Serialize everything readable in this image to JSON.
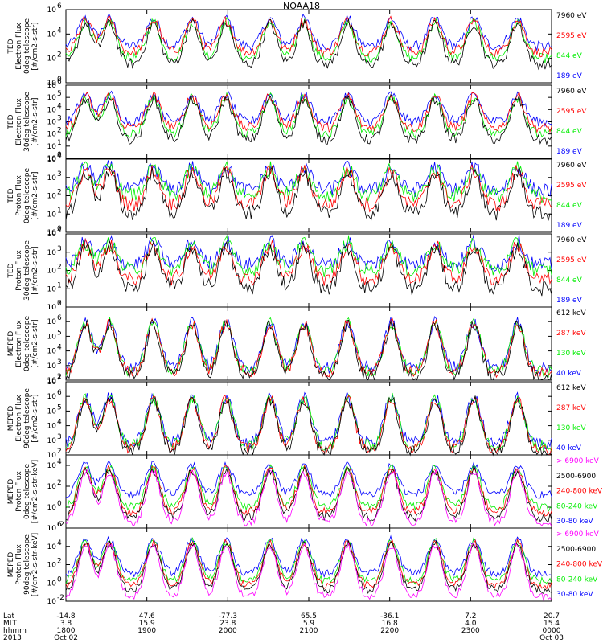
{
  "title": "NOAA18",
  "colors": {
    "black": "#000000",
    "blue": "#0000ff",
    "green": "#00ee00",
    "red": "#ff0000",
    "magenta": "#ff00ff"
  },
  "chart_data": [
    {
      "type": "line",
      "ylabel": [
        "TED",
        "Electron Flux",
        "0deg telescope",
        "[#/cm2-s-str]"
      ],
      "ylim_exp": [
        0,
        6
      ],
      "ticks": [
        [
          0,
          "10"
        ],
        [
          2,
          "10"
        ],
        [
          4,
          "10"
        ],
        [
          6,
          "10"
        ]
      ],
      "exp_labels": [
        "0",
        "2",
        "4",
        "6"
      ],
      "series": [
        {
          "name": "7960 eV",
          "color": "#000000",
          "level": 1.5
        },
        {
          "name": "2595 eV",
          "color": "#ff0000",
          "level": 2.5
        },
        {
          "name": "844 eV",
          "color": "#00ee00",
          "level": 2.0
        },
        {
          "name": "189 eV",
          "color": "#0000ff",
          "level": 3.0
        }
      ]
    },
    {
      "type": "line",
      "ylabel": [
        "TED",
        "Electron Flux",
        "30deg telescope",
        "[#/cm2-s-str]"
      ],
      "ylim_exp": [
        0,
        6
      ],
      "ticks": [
        [
          0,
          "10"
        ],
        [
          1,
          "10"
        ],
        [
          2,
          "10"
        ],
        [
          3,
          "10"
        ],
        [
          4,
          "10"
        ],
        [
          5,
          "10"
        ],
        [
          6,
          "10"
        ]
      ],
      "exp_labels": [
        "0",
        "1",
        "2",
        "3",
        "4",
        "5",
        "6"
      ],
      "series": [
        {
          "name": "7960 eV",
          "color": "#000000",
          "level": 1.5
        },
        {
          "name": "2595 eV",
          "color": "#ff0000",
          "level": 2.5
        },
        {
          "name": "844 eV",
          "color": "#00ee00",
          "level": 2.0
        },
        {
          "name": "189 eV",
          "color": "#0000ff",
          "level": 3.0
        }
      ]
    },
    {
      "type": "line",
      "ylabel": [
        "TED",
        "Proton Flux",
        "0deg telescope",
        "[#/cm2-s-str]"
      ],
      "ylim_exp": [
        0,
        4
      ],
      "ticks": [
        [
          0,
          "10"
        ],
        [
          1,
          "10"
        ],
        [
          2,
          "10"
        ],
        [
          3,
          "10"
        ],
        [
          4,
          "10"
        ]
      ],
      "exp_labels": [
        "0",
        "1",
        "2",
        "3",
        "4"
      ],
      "series": [
        {
          "name": "7960 eV",
          "color": "#000000",
          "level": 1.0
        },
        {
          "name": "2595 eV",
          "color": "#ff0000",
          "level": 1.5
        },
        {
          "name": "844 eV",
          "color": "#00ee00",
          "level": 2.0
        },
        {
          "name": "189 eV",
          "color": "#0000ff",
          "level": 2.3
        }
      ]
    },
    {
      "type": "line",
      "ylabel": [
        "TED",
        "Proton Flux",
        "30deg telescope",
        "[#/cm2-s-str]"
      ],
      "ylim_exp": [
        0,
        4
      ],
      "ticks": [
        [
          0,
          "10"
        ],
        [
          1,
          "10"
        ],
        [
          2,
          "10"
        ],
        [
          3,
          "10"
        ],
        [
          4,
          "10"
        ]
      ],
      "exp_labels": [
        "0",
        "1",
        "2",
        "3",
        "4"
      ],
      "series": [
        {
          "name": "7960 eV",
          "color": "#000000",
          "level": 1.0
        },
        {
          "name": "2595 eV",
          "color": "#ff0000",
          "level": 1.5
        },
        {
          "name": "844 eV",
          "color": "#00ee00",
          "level": 2.0
        },
        {
          "name": "189 eV",
          "color": "#0000ff",
          "level": 2.3
        }
      ]
    },
    {
      "type": "line",
      "ylabel": [
        "MEPED",
        "Electron Flux",
        "0deg telescope",
        "[#/cm2-s-str]"
      ],
      "ylim_exp": [
        2,
        7
      ],
      "ticks": [
        [
          2,
          "10"
        ],
        [
          3,
          "10"
        ],
        [
          4,
          "10"
        ],
        [
          5,
          "10"
        ],
        [
          6,
          "10"
        ],
        [
          7,
          "10"
        ]
      ],
      "exp_labels": [
        "2",
        "3",
        "4",
        "5",
        "6",
        "7"
      ],
      "series": [
        {
          "name": "612 keV",
          "color": "#000000",
          "level": 2.2
        },
        {
          "name": "287 keV",
          "color": "#ff0000",
          "level": 2.5
        },
        {
          "name": "130 keV",
          "color": "#00ee00",
          "level": 2.6
        },
        {
          "name": "40 keV",
          "color": "#0000ff",
          "level": 2.8
        }
      ]
    },
    {
      "type": "line",
      "ylabel": [
        "MEPED",
        "Electron Flux",
        "90deg telescope",
        "[#/cm2-s-str]"
      ],
      "ylim_exp": [
        2,
        7
      ],
      "ticks": [
        [
          2,
          "10"
        ],
        [
          3,
          "10"
        ],
        [
          4,
          "10"
        ],
        [
          5,
          "10"
        ],
        [
          6,
          "10"
        ],
        [
          7,
          "10"
        ]
      ],
      "exp_labels": [
        "2",
        "3",
        "4",
        "5",
        "6",
        "7"
      ],
      "series": [
        {
          "name": "612 keV",
          "color": "#000000",
          "level": 2.2
        },
        {
          "name": "287 keV",
          "color": "#ff0000",
          "level": 2.4
        },
        {
          "name": "130 keV",
          "color": "#00ee00",
          "level": 2.6
        },
        {
          "name": "40 keV",
          "color": "#0000ff",
          "level": 2.8
        }
      ]
    },
    {
      "type": "line",
      "ylabel": [
        "MEPED",
        "Proton Flux",
        "0deg telescope",
        "[#/cm2-s-str-keV]"
      ],
      "ylim_exp": [
        -2,
        5
      ],
      "ticks": [
        [
          -2,
          "10"
        ],
        [
          0,
          "10"
        ],
        [
          2,
          "10"
        ],
        [
          4,
          "10"
        ]
      ],
      "exp_labels": [
        "-2",
        "0",
        "2",
        "4"
      ],
      "series": [
        {
          "name": "> 6900 keV",
          "color": "#ff00ff",
          "level": -1.5
        },
        {
          "name": "2500-6900",
          "color": "#000000",
          "level": -1.0
        },
        {
          "name": "240-800 keV",
          "color": "#ff0000",
          "level": -0.5
        },
        {
          "name": "80-240 keV",
          "color": "#00ee00",
          "level": 0.0
        },
        {
          "name": "30-80 keV",
          "color": "#0000ff",
          "level": 1.2
        }
      ]
    },
    {
      "type": "line",
      "ylabel": [
        "MEPED",
        "Proton Flux",
        "90deg telescope",
        "[#/cm2-s-str-keV]"
      ],
      "ylim_exp": [
        -2,
        6
      ],
      "ticks": [
        [
          -2,
          "10"
        ],
        [
          0,
          "10"
        ],
        [
          2,
          "10"
        ],
        [
          4,
          "10"
        ],
        [
          6,
          "10"
        ]
      ],
      "exp_labels": [
        "-2",
        "0",
        "2",
        "4",
        "6"
      ],
      "series": [
        {
          "name": "> 6900 keV",
          "color": "#ff00ff",
          "level": -1.5
        },
        {
          "name": "2500-6900",
          "color": "#000000",
          "level": -0.8
        },
        {
          "name": "240-800 keV",
          "color": "#ff0000",
          "level": -0.3
        },
        {
          "name": "80-240 keV",
          "color": "#00ee00",
          "level": 0.2
        },
        {
          "name": "30-80 keV",
          "color": "#0000ff",
          "level": 1.0
        }
      ]
    }
  ],
  "x_axis": {
    "row_labels": [
      "Lat",
      "MLT",
      "hhmm",
      "2013"
    ],
    "columns": [
      {
        "lat": "-14.8",
        "mlt": "3.8",
        "hhmm": "1800",
        "date": "Oct 02"
      },
      {
        "lat": "47.6",
        "mlt": "15.9",
        "hhmm": "1900",
        "date": ""
      },
      {
        "lat": "-77.3",
        "mlt": "23.8",
        "hhmm": "2000",
        "date": ""
      },
      {
        "lat": "65.5",
        "mlt": "5.9",
        "hhmm": "2100",
        "date": ""
      },
      {
        "lat": "-36.1",
        "mlt": "16.8",
        "hhmm": "2200",
        "date": ""
      },
      {
        "lat": "7.2",
        "mlt": "4.0",
        "hhmm": "2300",
        "date": ""
      },
      {
        "lat": "20.7",
        "mlt": "15.4",
        "hhmm": "0000",
        "date": "Oct 03"
      }
    ]
  }
}
